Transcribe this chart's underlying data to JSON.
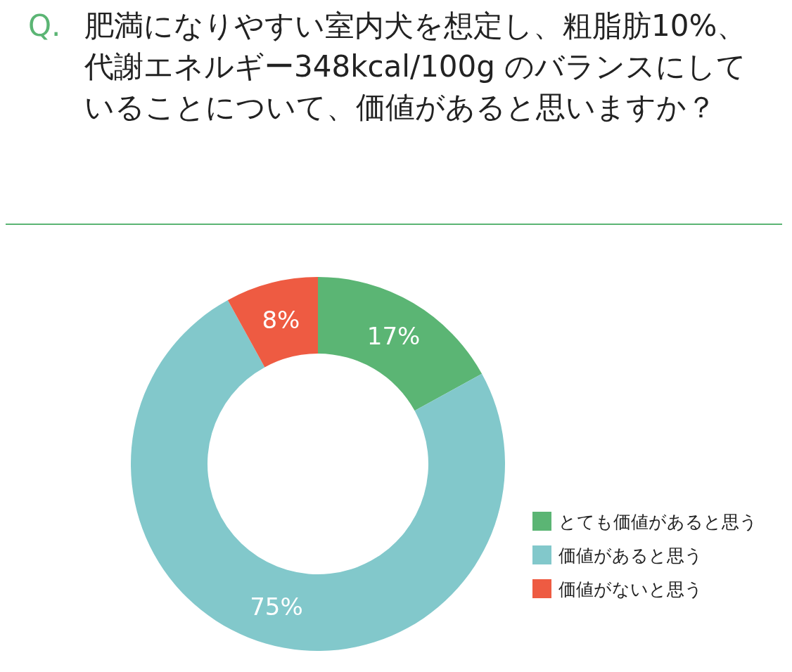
{
  "chart_data": {
    "type": "donut",
    "title": "Q. 肥満になりやすい室内犬を想定し、粗脂肪10%、代謝エネルギー348kcal/100g のバランスにしていることについて、価値があると思いますか？",
    "categories": [
      "とても価値があると思う",
      "価値があると思う",
      "価値がないと思う"
    ],
    "values": [
      17,
      75,
      8
    ],
    "colors": [
      "#5bb574",
      "#82c8cb",
      "#ee5b42"
    ],
    "value_labels": [
      "17%",
      "75%",
      "8%"
    ],
    "legend": "bottom right"
  }
}
